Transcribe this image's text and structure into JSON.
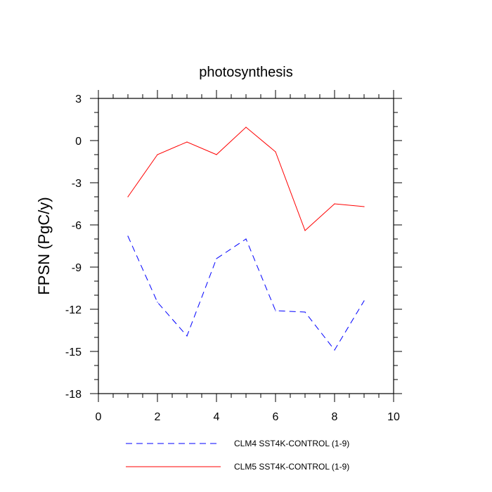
{
  "chart_data": {
    "type": "line",
    "title": "photosynthesis",
    "xlabel": "",
    "ylabel": "FPSN  (PgC/y)",
    "xlim": [
      0,
      10
    ],
    "ylim": [
      -18,
      3
    ],
    "x_ticks": [
      0,
      2,
      4,
      6,
      8,
      10
    ],
    "x_tick_labels": [
      "0",
      "2",
      "4",
      "6",
      "8",
      "10"
    ],
    "y_ticks": [
      3,
      0,
      -3,
      -6,
      -9,
      -12,
      -15,
      -18
    ],
    "y_tick_labels": [
      "3",
      "0",
      "-3",
      "-6",
      "-9",
      "-12",
      "-15",
      "-18"
    ],
    "grid": false,
    "legend_position": "bottom",
    "x": [
      1,
      2,
      3,
      4,
      5,
      6,
      7,
      8,
      9
    ],
    "series": [
      {
        "name": "CLM4 SST4K-CONTROL (1-9)",
        "values": [
          -6.8,
          -11.5,
          -13.9,
          -8.4,
          -7.0,
          -12.1,
          -12.2,
          -14.9,
          -11.4
        ],
        "color": "#0000ff",
        "dash": "dashed"
      },
      {
        "name": "CLM5 SST4K-CONTROL (1-9)",
        "values": [
          -4.0,
          -1.0,
          -0.1,
          -1.0,
          0.95,
          -0.8,
          -6.4,
          -4.5,
          -4.7
        ],
        "color": "#ff0000",
        "dash": "solid"
      }
    ]
  }
}
